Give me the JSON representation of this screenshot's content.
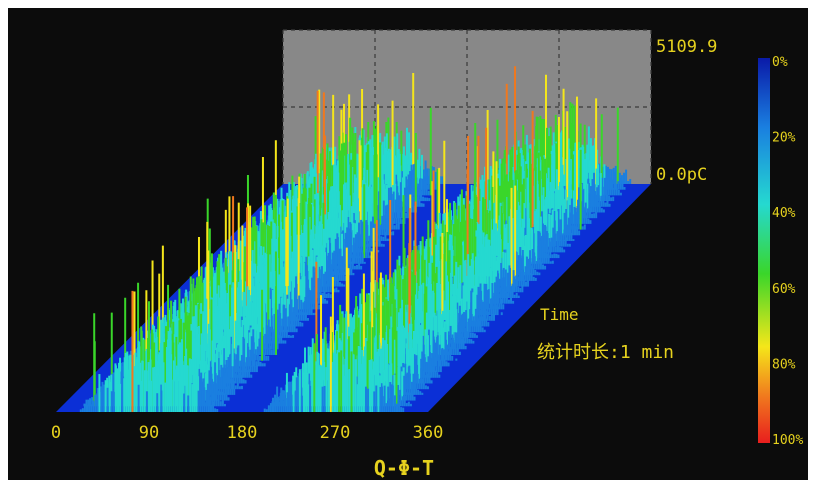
{
  "chart_data": {
    "type": "3d-surface-prpd",
    "title": "Q-Φ-T",
    "x_axis": {
      "label": "",
      "ticks": [
        "0",
        "90",
        "180",
        "270",
        "360"
      ],
      "range": [
        0,
        360
      ]
    },
    "y_axis": {
      "max_label": "5109.9",
      "min_label": "0.0pC",
      "range": [
        0,
        5109.9
      ]
    },
    "time_axis": {
      "label": "Time",
      "duration_label": "统计时长:1 min"
    },
    "colorbar": {
      "ticks": [
        "0%",
        "20%",
        "40%",
        "60%",
        "80%",
        "100%"
      ],
      "colors": [
        "#0a1aa8",
        "#1a7fe0",
        "#25d9d0",
        "#3ad62a",
        "#f5e61a",
        "#f0781e",
        "#e81e1e"
      ]
    },
    "background": "#0c0c0c",
    "back_panel_color": "#888888",
    "label_color": "#e6d21e",
    "grid": true,
    "clusters": [
      {
        "phase_center": 90,
        "phase_halfwidth": 70,
        "peak_fraction_range": [
          0.2,
          0.55
        ]
      },
      {
        "phase_center": 270,
        "phase_halfwidth": 70,
        "peak_fraction_range": [
          0.2,
          0.6
        ]
      }
    ]
  }
}
